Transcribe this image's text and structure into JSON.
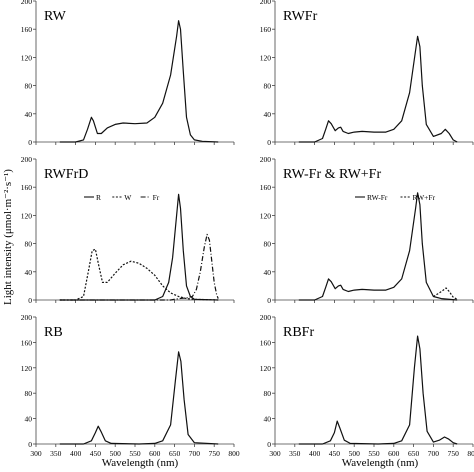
{
  "figure": {
    "ylabel": "Light intensity (μmol·m⁻²·s⁻¹)",
    "xlabel": "Wavelength (nm)",
    "x_ticks": [
      "300",
      "350",
      "400",
      "450",
      "500",
      "550",
      "600",
      "650",
      "700",
      "750",
      "800"
    ],
    "y_ticks": [
      "0",
      "40",
      "80",
      "120",
      "160",
      "200"
    ]
  },
  "chart_data": [
    {
      "type": "line",
      "title": "RW",
      "xlim": [
        300,
        800
      ],
      "ylim": [
        0,
        200
      ],
      "legend": [],
      "series": [
        {
          "style": "solid",
          "points": [
            [
              360,
              0
            ],
            [
              400,
              0
            ],
            [
              420,
              3
            ],
            [
              430,
              18
            ],
            [
              440,
              35
            ],
            [
              445,
              30
            ],
            [
              455,
              12
            ],
            [
              465,
              12
            ],
            [
              480,
              20
            ],
            [
              500,
              25
            ],
            [
              520,
              27
            ],
            [
              550,
              26
            ],
            [
              580,
              27
            ],
            [
              600,
              35
            ],
            [
              620,
              55
            ],
            [
              640,
              95
            ],
            [
              655,
              150
            ],
            [
              660,
              172
            ],
            [
              665,
              160
            ],
            [
              672,
              100
            ],
            [
              680,
              35
            ],
            [
              690,
              10
            ],
            [
              700,
              3
            ],
            [
              720,
              1
            ],
            [
              760,
              0
            ]
          ]
        }
      ]
    },
    {
      "type": "line",
      "title": "RWFr",
      "xlim": [
        300,
        800
      ],
      "ylim": [
        0,
        200
      ],
      "legend": [],
      "series": [
        {
          "style": "solid",
          "points": [
            [
              360,
              0
            ],
            [
              400,
              0
            ],
            [
              420,
              5
            ],
            [
              428,
              18
            ],
            [
              435,
              30
            ],
            [
              442,
              26
            ],
            [
              452,
              16
            ],
            [
              460,
              20
            ],
            [
              466,
              21
            ],
            [
              472,
              15
            ],
            [
              485,
              12
            ],
            [
              500,
              14
            ],
            [
              520,
              15
            ],
            [
              550,
              14
            ],
            [
              580,
              14
            ],
            [
              600,
              18
            ],
            [
              620,
              30
            ],
            [
              640,
              70
            ],
            [
              655,
              130
            ],
            [
              660,
              150
            ],
            [
              666,
              135
            ],
            [
              672,
              80
            ],
            [
              682,
              25
            ],
            [
              700,
              8
            ],
            [
              720,
              12
            ],
            [
              730,
              18
            ],
            [
              740,
              12
            ],
            [
              750,
              3
            ],
            [
              760,
              0
            ]
          ]
        }
      ]
    },
    {
      "type": "line",
      "title": "RWFrD",
      "xlim": [
        300,
        800
      ],
      "ylim": [
        0,
        200
      ],
      "legend": [
        "R",
        "W",
        "Fr"
      ],
      "series": [
        {
          "name": "R",
          "style": "solid",
          "points": [
            [
              360,
              0
            ],
            [
              600,
              0
            ],
            [
              620,
              5
            ],
            [
              635,
              25
            ],
            [
              645,
              60
            ],
            [
              655,
              120
            ],
            [
              660,
              150
            ],
            [
              665,
              130
            ],
            [
              672,
              70
            ],
            [
              680,
              20
            ],
            [
              690,
              5
            ],
            [
              700,
              1
            ],
            [
              760,
              0
            ]
          ]
        },
        {
          "name": "W",
          "style": "dotted",
          "points": [
            [
              360,
              0
            ],
            [
              400,
              0
            ],
            [
              420,
              5
            ],
            [
              432,
              40
            ],
            [
              442,
              70
            ],
            [
              450,
              72
            ],
            [
              458,
              50
            ],
            [
              468,
              25
            ],
            [
              480,
              25
            ],
            [
              500,
              38
            ],
            [
              520,
              50
            ],
            [
              540,
              55
            ],
            [
              560,
              52
            ],
            [
              580,
              45
            ],
            [
              600,
              35
            ],
            [
              620,
              20
            ],
            [
              640,
              10
            ],
            [
              660,
              5
            ],
            [
              680,
              2
            ],
            [
              700,
              1
            ],
            [
              760,
              0
            ]
          ]
        },
        {
          "name": "Fr",
          "style": "dashdot",
          "points": [
            [
              360,
              0
            ],
            [
              640,
              0
            ],
            [
              660,
              2
            ],
            [
              680,
              3
            ],
            [
              695,
              5
            ],
            [
              705,
              15
            ],
            [
              715,
              40
            ],
            [
              725,
              75
            ],
            [
              732,
              93
            ],
            [
              738,
              85
            ],
            [
              744,
              55
            ],
            [
              750,
              25
            ],
            [
              756,
              8
            ],
            [
              760,
              2
            ]
          ]
        }
      ]
    },
    {
      "type": "line",
      "title": "RW-Fr & RW+Fr",
      "xlim": [
        300,
        800
      ],
      "ylim": [
        0,
        200
      ],
      "legend": [
        "RW-Fr",
        "RW+Fr"
      ],
      "series": [
        {
          "name": "RW-Fr",
          "style": "solid",
          "points": [
            [
              360,
              0
            ],
            [
              400,
              0
            ],
            [
              420,
              5
            ],
            [
              428,
              18
            ],
            [
              435,
              30
            ],
            [
              442,
              26
            ],
            [
              452,
              16
            ],
            [
              460,
              20
            ],
            [
              466,
              21
            ],
            [
              472,
              15
            ],
            [
              485,
              12
            ],
            [
              500,
              14
            ],
            [
              520,
              15
            ],
            [
              550,
              14
            ],
            [
              580,
              14
            ],
            [
              600,
              18
            ],
            [
              620,
              30
            ],
            [
              640,
              70
            ],
            [
              655,
              130
            ],
            [
              660,
              152
            ],
            [
              666,
              135
            ],
            [
              672,
              80
            ],
            [
              682,
              25
            ],
            [
              700,
              5
            ],
            [
              720,
              2
            ],
            [
              760,
              0
            ]
          ]
        },
        {
          "name": "RW+Fr",
          "style": "dotted",
          "points": [
            [
              700,
              5
            ],
            [
              715,
              10
            ],
            [
              725,
              14
            ],
            [
              732,
              17
            ],
            [
              740,
              12
            ],
            [
              750,
              4
            ],
            [
              760,
              1
            ]
          ]
        }
      ]
    },
    {
      "type": "line",
      "title": "RB",
      "xlim": [
        300,
        800
      ],
      "ylim": [
        0,
        200
      ],
      "legend": [],
      "series": [
        {
          "style": "solid",
          "points": [
            [
              360,
              0
            ],
            [
              420,
              0
            ],
            [
              440,
              5
            ],
            [
              450,
              18
            ],
            [
              457,
              28
            ],
            [
              464,
              20
            ],
            [
              475,
              5
            ],
            [
              490,
              1
            ],
            [
              560,
              0
            ],
            [
              600,
              1
            ],
            [
              620,
              5
            ],
            [
              640,
              30
            ],
            [
              652,
              100
            ],
            [
              660,
              145
            ],
            [
              666,
              130
            ],
            [
              674,
              70
            ],
            [
              684,
              15
            ],
            [
              700,
              2
            ],
            [
              760,
              0
            ]
          ]
        }
      ]
    },
    {
      "type": "line",
      "title": "RBFr",
      "xlim": [
        300,
        800
      ],
      "ylim": [
        0,
        200
      ],
      "legend": [],
      "series": [
        {
          "style": "solid",
          "points": [
            [
              360,
              0
            ],
            [
              420,
              0
            ],
            [
              440,
              5
            ],
            [
              450,
              18
            ],
            [
              457,
              36
            ],
            [
              464,
              25
            ],
            [
              475,
              6
            ],
            [
              490,
              1
            ],
            [
              560,
              0
            ],
            [
              600,
              1
            ],
            [
              620,
              5
            ],
            [
              640,
              30
            ],
            [
              652,
              120
            ],
            [
              660,
              170
            ],
            [
              666,
              150
            ],
            [
              674,
              80
            ],
            [
              684,
              20
            ],
            [
              700,
              3
            ],
            [
              715,
              6
            ],
            [
              728,
              11
            ],
            [
              738,
              8
            ],
            [
              750,
              2
            ],
            [
              760,
              0
            ]
          ]
        }
      ]
    }
  ]
}
